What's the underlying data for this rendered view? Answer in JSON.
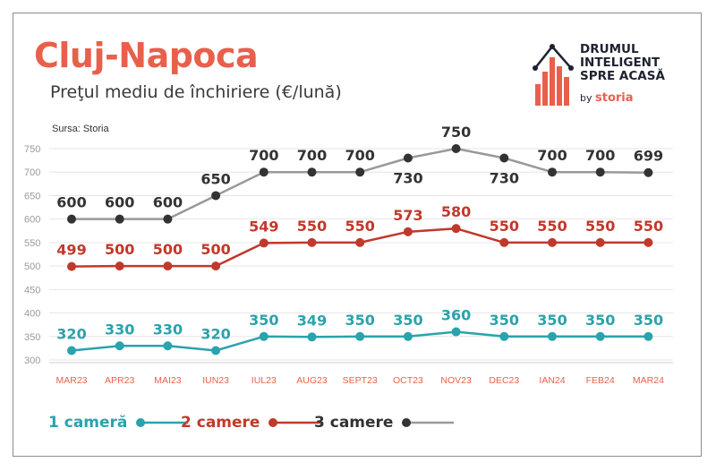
{
  "header": {
    "title": "Cluj-Napoca",
    "subtitle": "Preţul mediu de închiriere (€/lună)",
    "source": "Sursa: Storia"
  },
  "logo": {
    "lines": [
      "DRUMUL",
      "INTELIGENT",
      "SPRE ACASĂ"
    ],
    "by": "by",
    "brand": "storia"
  },
  "colors": {
    "title": "#e8604c",
    "series_1": "#2aa3ad",
    "series_2": "#c0392b",
    "series_3_line": "#999999",
    "series_3_marker": "#333333",
    "axis_text": "#e8604c",
    "ytick_text": "#9a9a9a",
    "grid": "#e6e6e6"
  },
  "chart_data": {
    "type": "line",
    "title": "Preţul mediu de închiriere (€/lună)",
    "xlabel": "",
    "ylabel": "",
    "categories": [
      "MAR23",
      "APR23",
      "MAI23",
      "IUN23",
      "IUL23",
      "AUG23",
      "SEPT23",
      "OCT23",
      "NOV23",
      "DEC23",
      "IAN24",
      "FEB24",
      "MAR24"
    ],
    "yticks": [
      300,
      350,
      400,
      450,
      500,
      550,
      600,
      650,
      700,
      750
    ],
    "ylim": [
      300,
      760
    ],
    "grid": true,
    "legend_position": "bottom-left",
    "series": [
      {
        "name": "1 cameră",
        "values": [
          320,
          330,
          330,
          320,
          350,
          349,
          350,
          350,
          360,
          350,
          350,
          350,
          350
        ]
      },
      {
        "name": "2 camere",
        "values": [
          499,
          500,
          500,
          500,
          549,
          550,
          550,
          573,
          580,
          550,
          550,
          550,
          550
        ]
      },
      {
        "name": "3 camere",
        "values": [
          600,
          600,
          600,
          650,
          700,
          700,
          700,
          730,
          750,
          730,
          700,
          700,
          699
        ]
      }
    ]
  }
}
